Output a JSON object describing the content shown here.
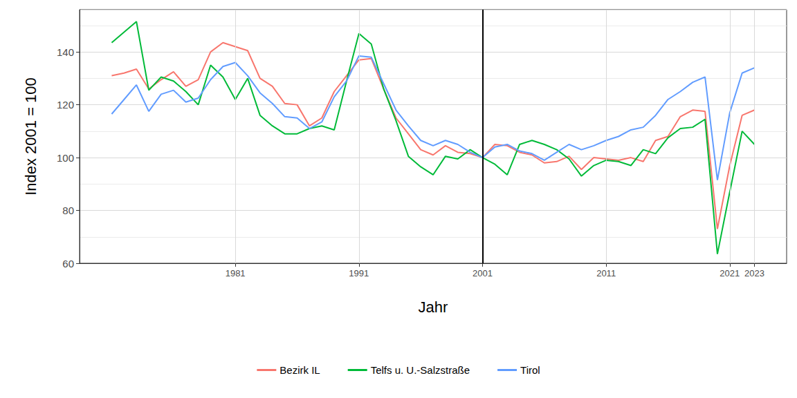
{
  "chart_data": {
    "type": "line",
    "x_label": "Jahr",
    "y_label": "Index 2001 = 100",
    "x": [
      1971,
      1972,
      1973,
      1974,
      1975,
      1976,
      1977,
      1978,
      1979,
      1980,
      1981,
      1982,
      1983,
      1984,
      1985,
      1986,
      1987,
      1988,
      1989,
      1990,
      1991,
      1992,
      1993,
      1994,
      1995,
      1996,
      1997,
      1998,
      1999,
      2000,
      2001,
      2002,
      2003,
      2004,
      2005,
      2006,
      2007,
      2008,
      2009,
      2010,
      2011,
      2012,
      2013,
      2014,
      2015,
      2016,
      2017,
      2018,
      2019,
      2020,
      2021,
      2022,
      2023
    ],
    "series": [
      {
        "name": "Bezirk IL",
        "color": "#F8766D",
        "values": [
          131,
          132,
          133.5,
          126,
          129.5,
          132.5,
          127,
          129.5,
          140,
          143.5,
          142,
          140.5,
          130,
          127,
          120.5,
          120,
          112,
          115,
          125,
          131,
          137,
          137.5,
          126,
          115,
          109,
          103,
          101,
          104.5,
          102,
          101.5,
          100,
          105,
          104.5,
          102,
          101,
          98,
          98.5,
          100.5,
          95.5,
          100,
          99.5,
          99,
          100,
          98.5,
          106.5,
          108,
          115.5,
          118,
          117.5,
          73,
          97,
          116,
          118
        ]
      },
      {
        "name": "Telfs u. U.-Salzstraße",
        "color": "#00BA38",
        "values": [
          143.5,
          147.5,
          151.5,
          125.5,
          130.5,
          129,
          125,
          120,
          135,
          130.5,
          122,
          130,
          116,
          112,
          109,
          109,
          111,
          112,
          110.5,
          129,
          147,
          143,
          126,
          114,
          100.5,
          96.5,
          93.5,
          100.5,
          99.5,
          103,
          100,
          97.5,
          93.5,
          105,
          106.5,
          105,
          103,
          99.5,
          93,
          97,
          99,
          98.5,
          97,
          103,
          101.5,
          107.5,
          111,
          111.5,
          114.5,
          63.5,
          87,
          110,
          105
        ]
      },
      {
        "name": "Tirol",
        "color": "#619CFF",
        "values": [
          116.5,
          122,
          127.5,
          117.5,
          124,
          125.5,
          121,
          122.5,
          129.5,
          134.5,
          136,
          131,
          124.5,
          120.5,
          115.5,
          115,
          111,
          113.5,
          123,
          129,
          138.5,
          138,
          128,
          118,
          112,
          106.5,
          104.5,
          106.5,
          105,
          102,
          100,
          104,
          105,
          102.5,
          101.5,
          99,
          102,
          105,
          103,
          104.5,
          106.5,
          108,
          110.5,
          111.5,
          116,
          122,
          125,
          128.5,
          130.5,
          91.5,
          117,
          132,
          134
        ]
      }
    ],
    "xlim": [
      1968.4,
      2025.6
    ],
    "ylim": [
      60,
      156
    ],
    "xticks": [
      1981,
      1991,
      2001,
      2011,
      2021,
      2023
    ],
    "yticks": [
      60,
      80,
      100,
      120,
      140
    ],
    "vlines": [
      2001
    ],
    "grid": true,
    "legend": "bottom"
  }
}
